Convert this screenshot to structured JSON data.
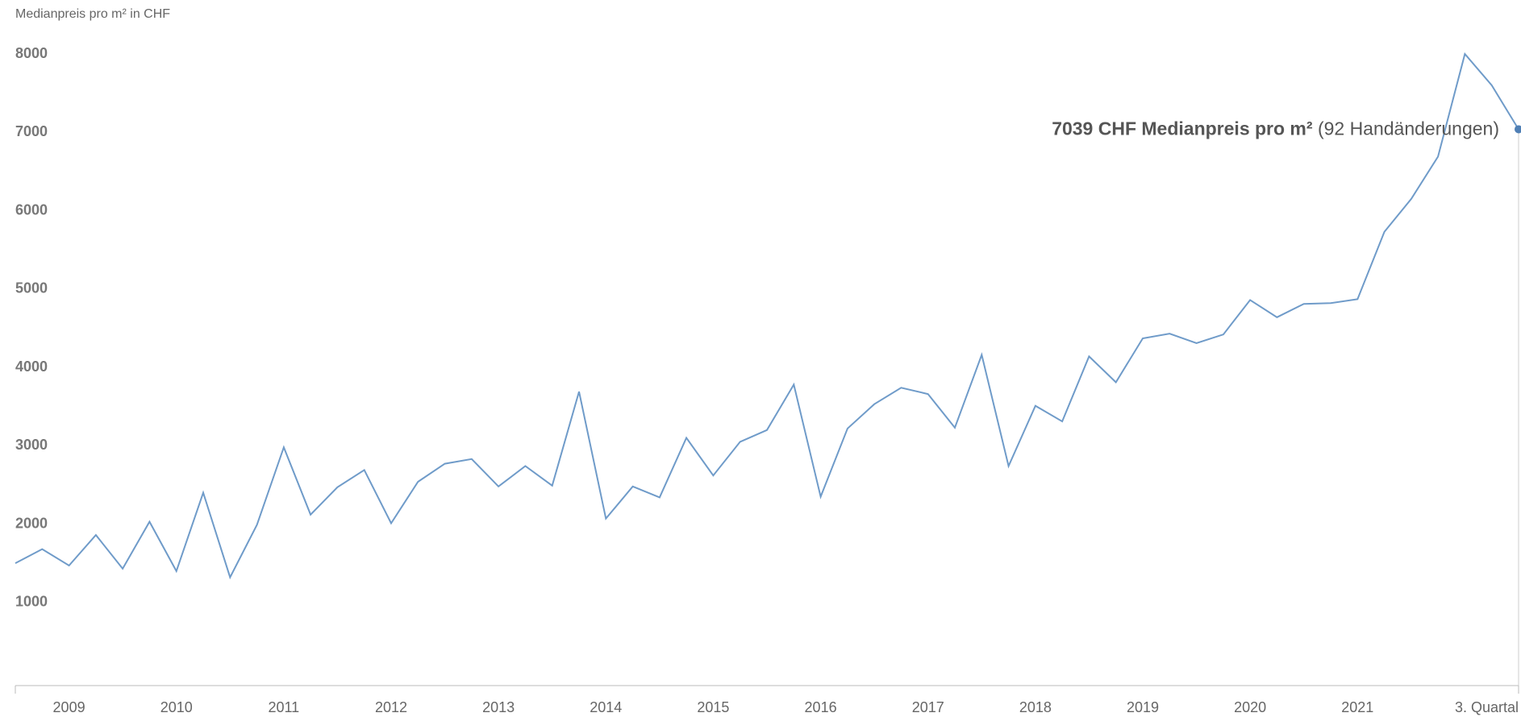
{
  "chart_data": {
    "type": "line",
    "y_axis_label": "Medianpreis pro m² in CHF",
    "categories": [
      null,
      null,
      "2009",
      null,
      null,
      null,
      "2010",
      null,
      null,
      null,
      "2011",
      null,
      null,
      null,
      "2012",
      null,
      null,
      null,
      "2013",
      null,
      null,
      null,
      "2014",
      null,
      null,
      null,
      "2015",
      null,
      null,
      null,
      "2016",
      null,
      null,
      null,
      "2017",
      null,
      null,
      null,
      "2018",
      null,
      null,
      null,
      "2019",
      null,
      null,
      null,
      "2020",
      null,
      null,
      null,
      "2021",
      null,
      null,
      null,
      null,
      null,
      "3. Quartal"
    ],
    "values": [
      1500,
      1680,
      1470,
      1860,
      1430,
      2030,
      1400,
      2400,
      1320,
      1990,
      2980,
      2120,
      2470,
      2690,
      2010,
      2540,
      2770,
      2830,
      2480,
      2740,
      2490,
      3690,
      2070,
      2480,
      2340,
      3100,
      2620,
      3050,
      3200,
      3780,
      2350,
      3220,
      3530,
      3740,
      3660,
      3230,
      4160,
      2740,
      3510,
      3310,
      4140,
      3810,
      4370,
      4430,
      4310,
      4420,
      4860,
      4640,
      4810,
      4820,
      4870,
      5730,
      6150,
      6690,
      8000,
      7600,
      7039
    ],
    "color": "#6f9bc9",
    "ylim": [
      0,
      8000
    ],
    "yticks": [
      1000,
      2000,
      3000,
      4000,
      5000,
      6000,
      7000,
      8000
    ],
    "grid": false,
    "annotation": {
      "label_bold": "7039 CHF Medianpreis pro m²",
      "label_rest": "(92 Handänderungen)"
    }
  }
}
